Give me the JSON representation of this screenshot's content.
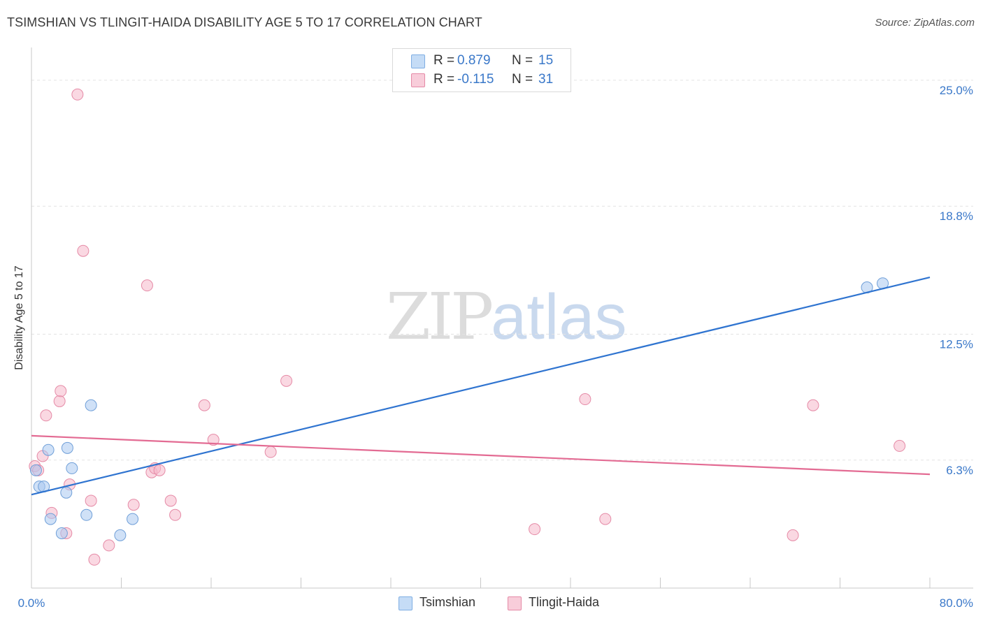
{
  "title": "TSIMSHIAN VS TLINGIT-HAIDA DISABILITY AGE 5 TO 17 CORRELATION CHART",
  "source": "Source: ZipAtlas.com",
  "watermark": {
    "zip": "ZIP",
    "atlas": "atlas"
  },
  "legend_top": {
    "rows": [
      {
        "r_label": "R =",
        "r_value": "0.879",
        "n_label": "N =",
        "n_value": "15",
        "color": "#a9c8f0"
      },
      {
        "r_label": "R =",
        "r_value": "-0.115",
        "n_label": "N =",
        "n_value": "31",
        "color": "#f5b8ca"
      }
    ]
  },
  "legend_bottom": {
    "items": [
      "Tsimshian",
      "Tlingit-Haida"
    ]
  },
  "chart_data": {
    "type": "scatter",
    "title": "TSIMSHIAN VS TLINGIT-HAIDA DISABILITY AGE 5 TO 17 CORRELATION CHART",
    "xlabel": "",
    "ylabel": "Disability Age 5 to 17",
    "xlim": [
      0,
      80
    ],
    "ylim": [
      0,
      26.2
    ],
    "x_tick_labels": [
      "0.0%",
      "80.0%"
    ],
    "y_ticks": [
      6.3,
      12.5,
      18.8,
      25.0
    ],
    "y_tick_labels": [
      "6.3%",
      "12.5%",
      "18.8%",
      "25.0%"
    ],
    "grid": true,
    "legend_position": "top-center",
    "series": [
      {
        "name": "Tsimshian",
        "color": "#a9c8f0",
        "edge_color": "#6f9fd8",
        "line_color": "#2f74d0",
        "r": 0.879,
        "n": 15,
        "points": [
          [
            0.4,
            5.8
          ],
          [
            0.7,
            5.0
          ],
          [
            1.1,
            5.0
          ],
          [
            1.5,
            6.8
          ],
          [
            1.7,
            3.4
          ],
          [
            2.7,
            2.7
          ],
          [
            3.1,
            4.7
          ],
          [
            3.2,
            6.9
          ],
          [
            3.6,
            5.9
          ],
          [
            4.9,
            3.6
          ],
          [
            5.3,
            9.0
          ],
          [
            7.9,
            2.6
          ],
          [
            9.0,
            3.4
          ],
          [
            74.4,
            14.8
          ],
          [
            75.8,
            15.0
          ]
        ],
        "trend": [
          [
            0,
            4.6
          ],
          [
            80,
            15.3
          ]
        ]
      },
      {
        "name": "Tlingit-Haida",
        "color": "#f5b8ca",
        "edge_color": "#e58aa6",
        "line_color": "#e36b93",
        "r": -0.115,
        "n": 31,
        "points": [
          [
            0.3,
            6.0
          ],
          [
            0.6,
            5.8
          ],
          [
            1.0,
            6.5
          ],
          [
            1.3,
            8.5
          ],
          [
            1.8,
            3.7
          ],
          [
            2.5,
            9.2
          ],
          [
            2.6,
            9.7
          ],
          [
            3.1,
            2.7
          ],
          [
            3.4,
            5.1
          ],
          [
            4.1,
            24.3
          ],
          [
            4.6,
            16.6
          ],
          [
            5.3,
            4.3
          ],
          [
            5.6,
            1.4
          ],
          [
            6.9,
            2.1
          ],
          [
            9.1,
            4.1
          ],
          [
            10.3,
            14.9
          ],
          [
            10.7,
            5.7
          ],
          [
            11.0,
            5.9
          ],
          [
            11.4,
            5.8
          ],
          [
            12.4,
            4.3
          ],
          [
            12.8,
            3.6
          ],
          [
            15.4,
            9.0
          ],
          [
            16.2,
            7.3
          ],
          [
            21.3,
            6.7
          ],
          [
            22.7,
            10.2
          ],
          [
            44.8,
            2.9
          ],
          [
            49.3,
            9.3
          ],
          [
            51.1,
            3.4
          ],
          [
            67.8,
            2.6
          ],
          [
            69.6,
            9.0
          ],
          [
            77.3,
            7.0
          ]
        ],
        "trend": [
          [
            0,
            7.5
          ],
          [
            80,
            5.6
          ]
        ]
      }
    ]
  }
}
